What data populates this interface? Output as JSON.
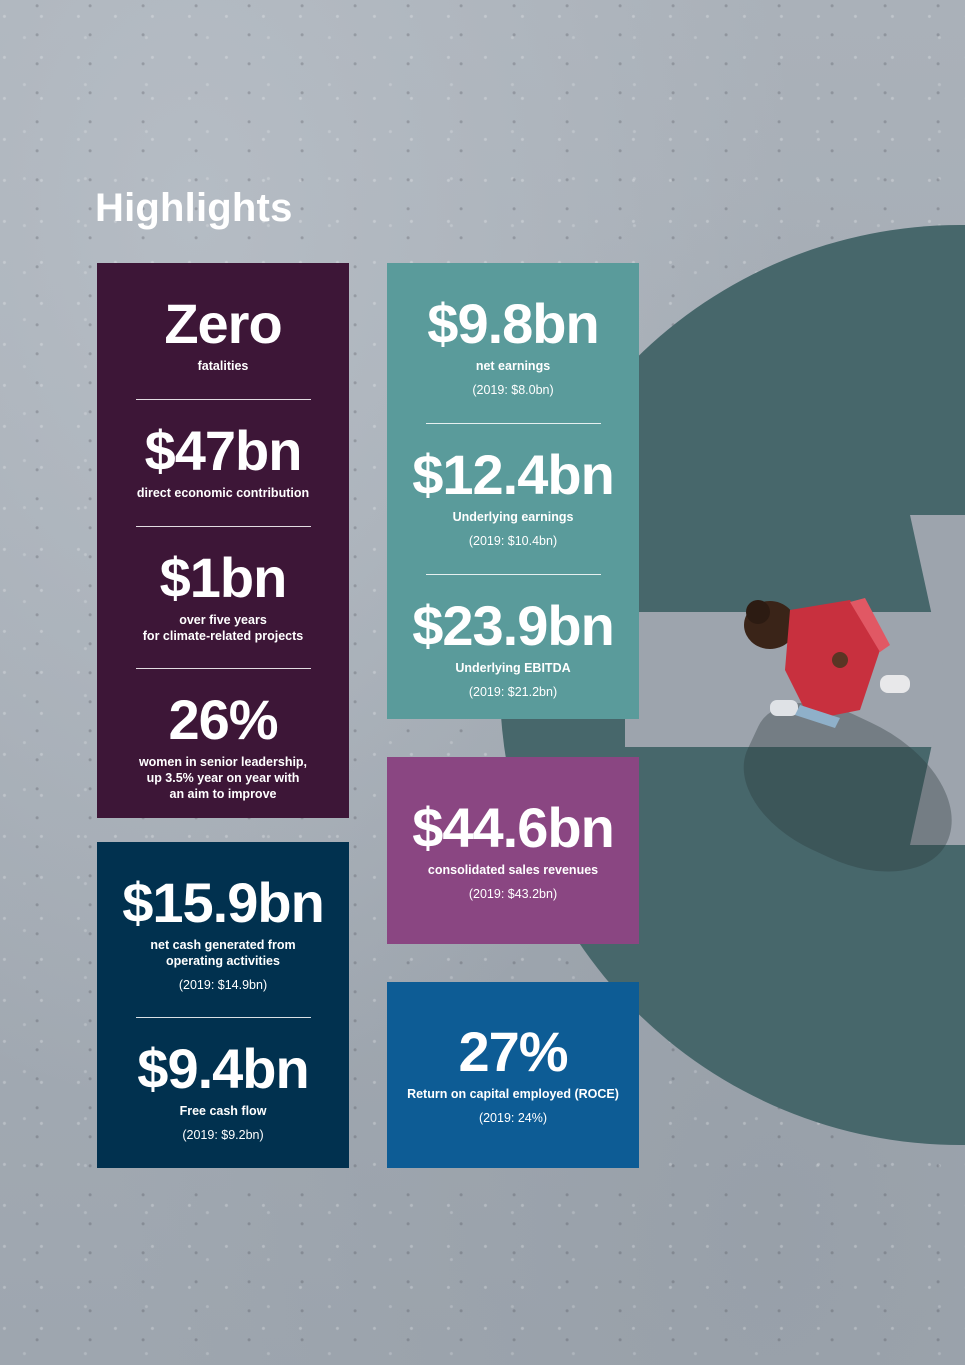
{
  "page": {
    "title": "Highlights",
    "colors": {
      "purple": "#3d1637",
      "teal": "#5a9b9b",
      "magenta": "#8a4682",
      "navy": "#01314f",
      "blue": "#0d5c95",
      "circle": "#47676b"
    }
  },
  "purple_box": {
    "fatalities": {
      "value": "Zero",
      "label": "fatalities"
    },
    "economic": {
      "value": "$47bn",
      "label": "direct economic contribution"
    },
    "climate": {
      "value": "$1bn",
      "label_line1": "over five years",
      "label_line2": "for climate-related projects"
    },
    "leadership": {
      "value": "26%",
      "label_line1": "women in senior leadership,",
      "label_line2": "up 3.5% year on year with",
      "label_line3": "an aim to improve"
    }
  },
  "teal_box": {
    "net_earnings": {
      "value": "$9.8bn",
      "label": "net earnings",
      "compare": "(2019: $8.0bn)"
    },
    "underlying_earnings": {
      "value": "$12.4bn",
      "label": "Underlying earnings",
      "compare": "(2019: $10.4bn)"
    },
    "ebitda": {
      "value": "$23.9bn",
      "label": "Underlying EBITDA",
      "compare": "(2019: $21.2bn)"
    }
  },
  "magenta_box": {
    "revenues": {
      "value": "$44.6bn",
      "label": "consolidated sales revenues",
      "compare": "(2019: $43.2bn)"
    }
  },
  "navy_box": {
    "net_cash": {
      "value": "$15.9bn",
      "label_line1": "net cash generated from",
      "label_line2": "operating activities",
      "compare": "(2019: $14.9bn)"
    },
    "free_cash": {
      "value": "$9.4bn",
      "label": "Free cash flow",
      "compare": "(2019: $9.2bn)"
    }
  },
  "blue_box": {
    "roce": {
      "value": "27%",
      "label": "Return on capital employed (ROCE)",
      "compare": "(2019: 24%)"
    }
  }
}
